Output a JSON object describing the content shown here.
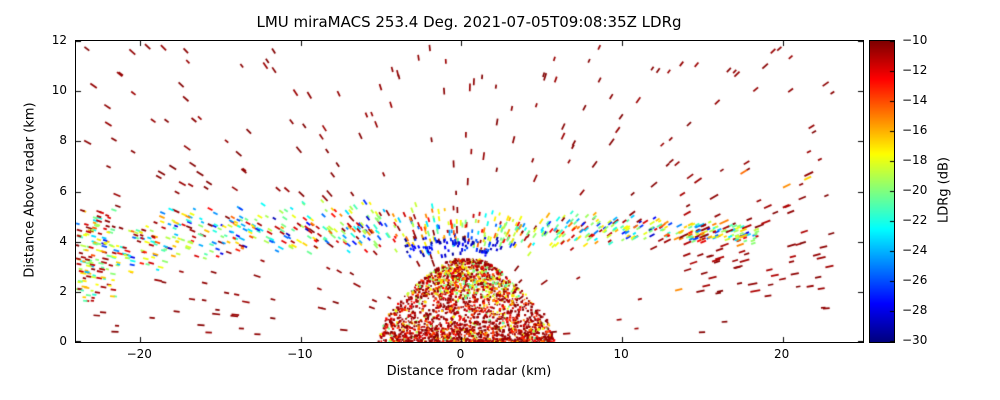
{
  "chart_data": {
    "type": "scatter",
    "title": "LMU miraMACS 253.4 Deg. 2021-07-05T09:08:35Z  LDRg",
    "xlabel": "Distance from radar (km)",
    "ylabel": "Distance Above radar  (km)",
    "xlim": [
      -24,
      25
    ],
    "ylim": [
      0,
      12
    ],
    "grid": false,
    "xticks": [
      -20,
      -10,
      0,
      10,
      20
    ],
    "xtick_labels": [
      "−20",
      "−10",
      "0",
      "10",
      "20"
    ],
    "yticks": [
      0,
      2,
      4,
      6,
      8,
      10,
      12
    ],
    "ytick_labels": [
      "0",
      "2",
      "4",
      "6",
      "8",
      "10",
      "12"
    ],
    "colorbar": {
      "label": "LDRg (dB)",
      "vmin": -30,
      "vmax": -10,
      "colormap": "jet",
      "ticks": [
        -10,
        -12,
        -14,
        -16,
        -18,
        -20,
        -22,
        -24,
        -26,
        -28,
        -30
      ],
      "tick_labels": [
        "−10",
        "−12",
        "−14",
        "−16",
        "−18",
        "−20",
        "−22",
        "−24",
        "−26",
        "−28",
        "−30"
      ]
    },
    "regions": [
      {
        "name": "upper-sparse-clutter",
        "shape": "dash",
        "seed": 11,
        "n": 270,
        "x": [
          -23.5,
          23.2
        ],
        "y": [
          0.3,
          11.8
        ],
        "values": [
          [
            -10.6,
            -10.0,
            1.0
          ]
        ],
        "dash": [
          4,
          8
        ],
        "lw": 1.7
      },
      {
        "name": "melting-layer-bright-band",
        "shape": "dash",
        "seed": 22,
        "n": 760,
        "x": [
          -24,
          18.5
        ],
        "band": {
          "center": [
            [
              -24,
              3.8
            ],
            [
              -20,
              3.9
            ],
            [
              -14,
              4.5
            ],
            [
              -8,
              4.6
            ],
            [
              -2,
              4.4
            ],
            [
              4,
              4.4
            ],
            [
              10,
              4.5
            ],
            [
              18,
              4.3
            ]
          ],
          "thickness": [
            [
              -24,
              3.2
            ],
            [
              -20,
              2.8
            ],
            [
              -14,
              2.2
            ],
            [
              -8,
              2.2
            ],
            [
              -2,
              2.2
            ],
            [
              4,
              1.8
            ],
            [
              10,
              1.3
            ],
            [
              18,
              0.8
            ]
          ]
        },
        "values": [
          [
            -21,
            -17,
            0.4
          ],
          [
            -17,
            -14,
            0.14
          ],
          [
            -25,
            -21,
            0.2
          ],
          [
            -13,
            -10,
            0.16
          ],
          [
            -29,
            -25,
            0.1
          ]
        ],
        "dash": [
          3,
          6
        ],
        "lw": 1.8
      },
      {
        "name": "band-dark-blue-core",
        "shape": "dash",
        "seed": 33,
        "n": 80,
        "x": [
          -3.5,
          2.5
        ],
        "y": [
          3.4,
          4.15
        ],
        "values": [
          [
            -30,
            -26,
            1.0
          ]
        ],
        "dash": [
          2,
          4
        ],
        "lw": 2.0
      },
      {
        "name": "ground-precip-blob",
        "shape": "dot",
        "seed": 44,
        "n": 2400,
        "blob": {
          "cx": 0.3,
          "ymax": 3.3,
          "pow": 1.6,
          "halfwidth": [
            [
              0,
              5.5
            ],
            [
              1,
              5.0
            ],
            [
              2,
              3.6
            ],
            [
              2.8,
              2.2
            ],
            [
              3.3,
              1.0
            ]
          ]
        },
        "values": [
          [
            -11,
            -10,
            0.62
          ],
          [
            -14,
            -11,
            0.22
          ],
          [
            -17,
            -13,
            0.08
          ],
          [
            -21,
            -16,
            0.08
          ]
        ],
        "green_above": {
          "y": 1.8,
          "p": 0.18,
          "range": [
            -21,
            -16
          ]
        },
        "size": [
          1.4,
          2.6
        ]
      },
      {
        "name": "blob-green-speckle-top",
        "shape": "dot",
        "seed": 55,
        "n": 150,
        "x": [
          -1.5,
          2.6
        ],
        "y": [
          1.7,
          3.0
        ],
        "values": [
          [
            -21,
            -16,
            0.7
          ],
          [
            -14,
            -11,
            0.3
          ]
        ],
        "size": [
          1.4,
          2.4
        ]
      },
      {
        "name": "right-side-red-streaks",
        "shape": "dash",
        "seed": 66,
        "n": 60,
        "x": [
          13.5,
          23.0
        ],
        "y": [
          2.0,
          6.8
        ],
        "values": [
          [
            -11,
            -10,
            0.85
          ],
          [
            -17,
            -14,
            0.15
          ]
        ],
        "dash": [
          6,
          10
        ],
        "lw": 1.8
      },
      {
        "name": "left-edge-mixed-column",
        "shape": "dash",
        "seed": 77,
        "n": 85,
        "x": [
          -24.0,
          -21.5
        ],
        "y": [
          1.6,
          5.4
        ],
        "values": [
          [
            -22,
            -16,
            0.55
          ],
          [
            -12,
            -10,
            0.45
          ]
        ],
        "dash": [
          3,
          6
        ],
        "lw": 1.8
      }
    ]
  }
}
